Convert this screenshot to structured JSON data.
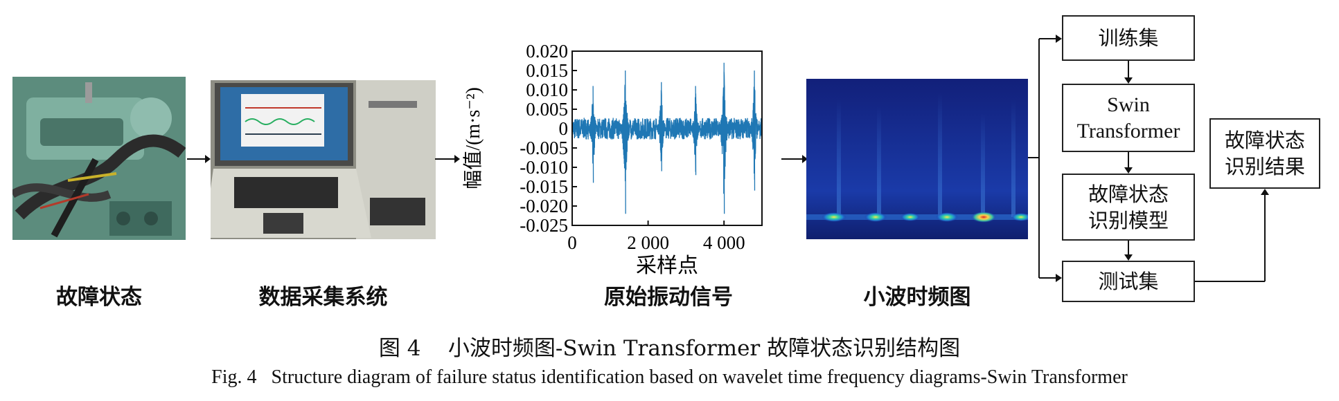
{
  "panels": {
    "fault_state": "故障状态",
    "data_acq": "数据采集系统",
    "raw_signal": "原始振动信号",
    "wavelet": "小波时频图"
  },
  "flow": {
    "train": "训练集",
    "model_line1": "Swin",
    "model_line2": "Transformer",
    "fault_model_line1": "故障状态",
    "fault_model_line2": "识别模型",
    "test": "测试集",
    "result_line1": "故障状态",
    "result_line2": "识别结果"
  },
  "caption": {
    "cn_prefix": "图 4",
    "cn_text": "小波时频图-Swin Transformer 故障状态识别结构图",
    "en_prefix": "Fig. 4",
    "en_text": "Structure diagram of failure status identification based on wavelet time frequency diagrams-Swin Transformer"
  },
  "chart_data": {
    "type": "line",
    "xlabel": "采样点",
    "ylabel": "幅值/(m·s⁻²)",
    "xlim": [
      0,
      5000
    ],
    "ylim": [
      -0.025,
      0.02
    ],
    "xticks": [
      {
        "value": 0,
        "label": "0"
      },
      {
        "value": 2000,
        "label": "2 000"
      },
      {
        "value": 4000,
        "label": "4 000"
      }
    ],
    "yticks": [
      {
        "value": 0.02,
        "label": "0.020"
      },
      {
        "value": 0.015,
        "label": "0.015"
      },
      {
        "value": 0.01,
        "label": "0.010"
      },
      {
        "value": 0.005,
        "label": "0.005"
      },
      {
        "value": 0,
        "label": "0"
      },
      {
        "value": -0.005,
        "label": "-0.005"
      },
      {
        "value": -0.01,
        "label": "-0.010"
      },
      {
        "value": -0.015,
        "label": "-0.015"
      },
      {
        "value": -0.02,
        "label": "-0.020"
      },
      {
        "value": -0.025,
        "label": "-0.025"
      }
    ],
    "series_color": "#1f77b4",
    "spikes": [
      {
        "x": 550,
        "max": 0.011,
        "min": -0.014
      },
      {
        "x": 1400,
        "max": 0.015,
        "min": -0.022
      },
      {
        "x": 2350,
        "max": 0.012,
        "min": -0.011
      },
      {
        "x": 3250,
        "max": 0.011,
        "min": -0.012
      },
      {
        "x": 4000,
        "max": 0.017,
        "min": -0.022
      },
      {
        "x": 4800,
        "max": 0.015,
        "min": -0.016
      }
    ]
  }
}
